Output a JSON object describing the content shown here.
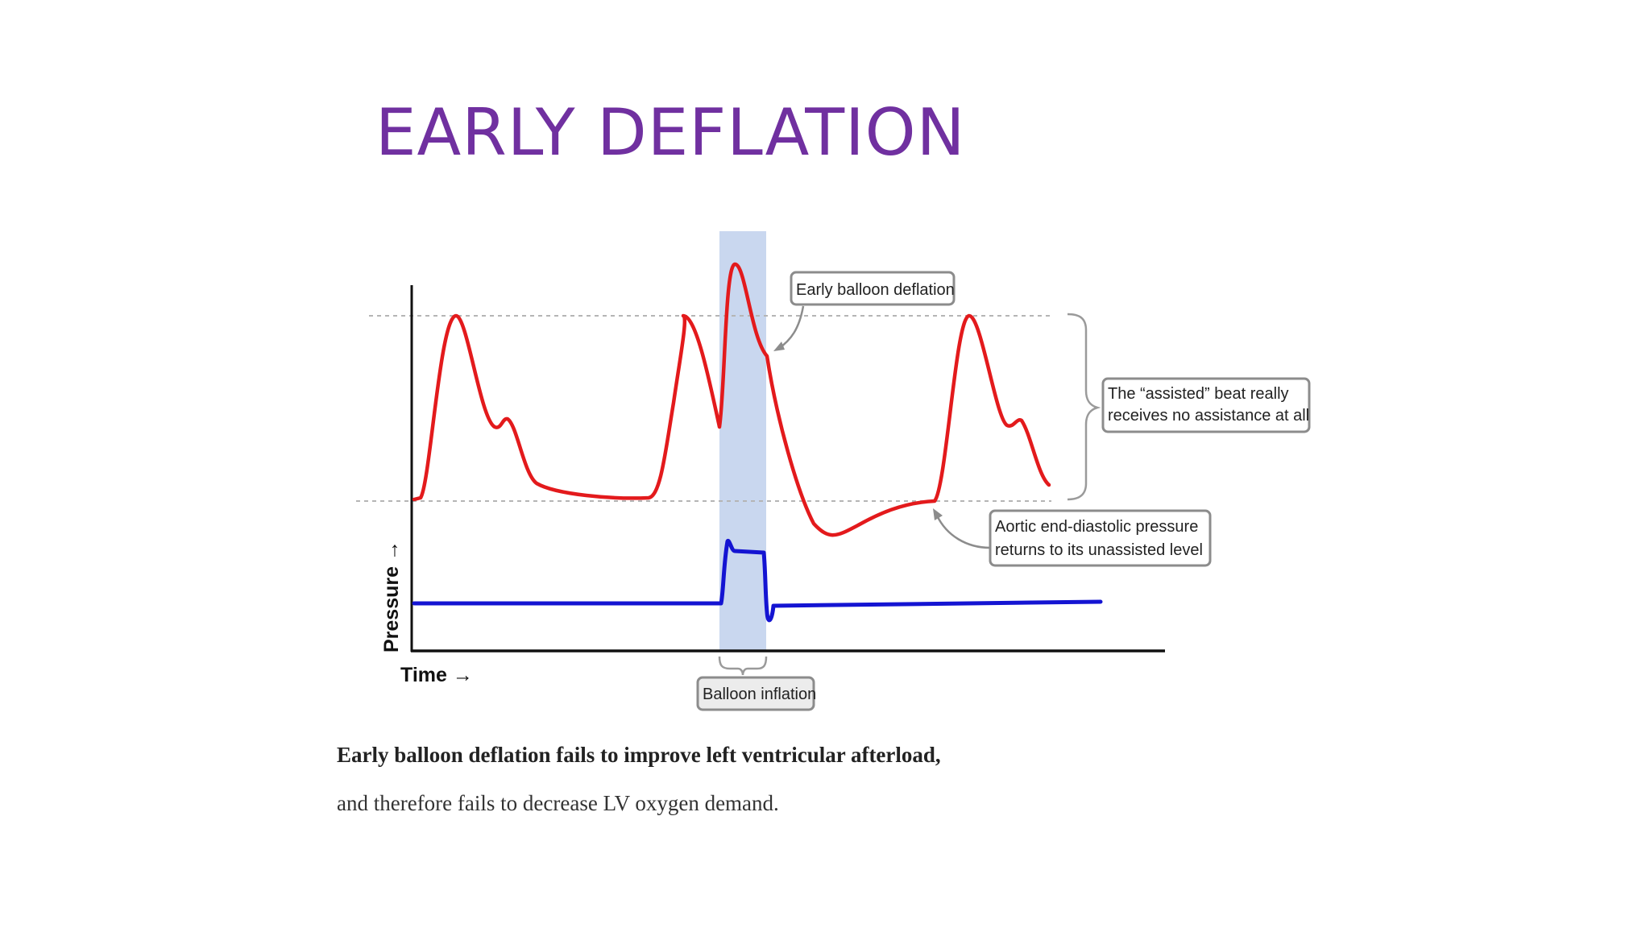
{
  "slide": {
    "title": "EARLY DEFLATION",
    "title_color": "#7030A0"
  },
  "diagram": {
    "y_axis_label": "Pressure →",
    "x_axis_label": "Time →",
    "callouts": {
      "early_deflation": "Early balloon deflation",
      "assisted_beat_line1": "The “assisted” beat really",
      "assisted_beat_line2": "receives no assistance at all",
      "end_diastolic_line1": "Aortic end-diastolic pressure",
      "end_diastolic_line2": "returns to its unassisted level",
      "balloon_inflation": "Balloon inflation"
    },
    "colors": {
      "arterial_pressure": "#e31a1c",
      "balloon_pressure": "#1414d2",
      "inflation_band": "#c9d7ef",
      "axis": "#111111"
    }
  },
  "caption": {
    "line1": "Early balloon deflation fails to improve left ventricular afterload,",
    "line2": "and therefore fails to decrease LV oxygen demand."
  }
}
